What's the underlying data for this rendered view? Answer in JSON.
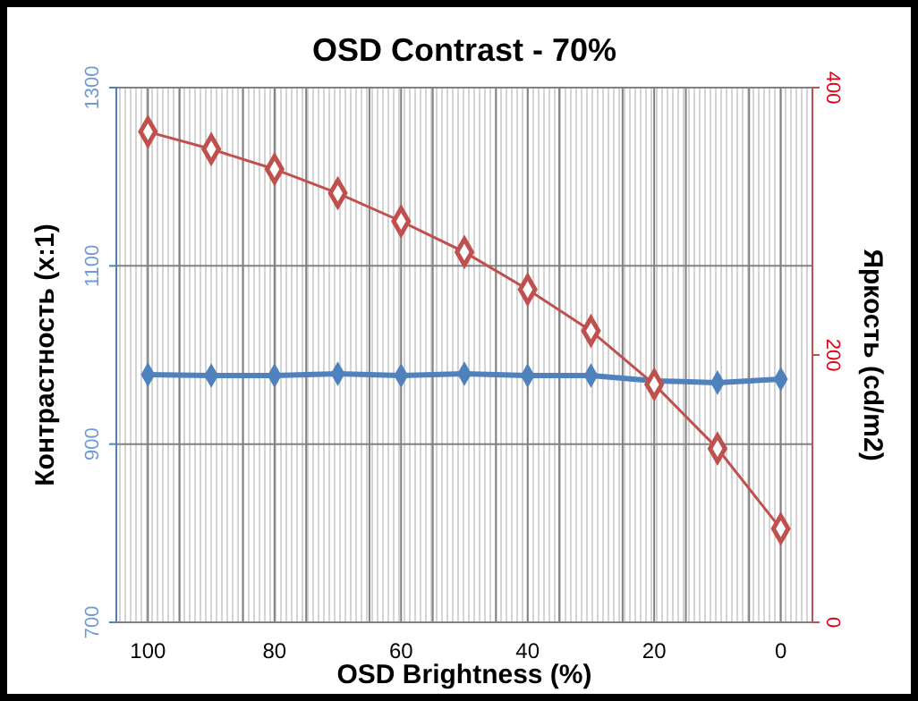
{
  "chart_data": {
    "type": "line",
    "title": "OSD Contrast - 70%",
    "xlabel": "OSD Brightness (%)",
    "ylabel": "Контрастность (x:1)",
    "y2label": "Яркость (cd/m2)",
    "x": [
      100,
      90,
      80,
      70,
      60,
      50,
      40,
      30,
      20,
      10,
      0
    ],
    "xlim": [
      105,
      -5
    ],
    "xticks": [
      100,
      {
        "value": 95,
        "label": null
      },
      {
        "value": 85,
        "label": null
      },
      80,
      {
        "value": 75,
        "label": null
      },
      {
        "value": 65,
        "label": null
      },
      60,
      {
        "value": 55,
        "label": null
      },
      {
        "value": 45,
        "label": null
      },
      40,
      {
        "value": 35,
        "label": null
      },
      {
        "value": 25,
        "label": null
      },
      20,
      {
        "value": 15,
        "label": null
      },
      {
        "value": 5,
        "label": null
      },
      0
    ],
    "ylim": [
      700,
      1300
    ],
    "yticks": [
      700,
      900,
      1100,
      1300
    ],
    "y2lim": [
      0,
      400
    ],
    "y2ticks": [
      0,
      200,
      400
    ],
    "grid": true,
    "marker": "diamond",
    "line_style": "solid",
    "series": [
      {
        "color": "#4f81bd",
        "values": [
          978,
          977,
          977,
          979,
          977,
          979,
          977,
          977,
          971,
          969,
          973
        ]
      },
      {
        "color": "#c0504d",
        "axis": "y2",
        "values": [
          367,
          354,
          339,
          321,
          300,
          277,
          249,
          218,
          178,
          130,
          70
        ]
      }
    ]
  }
}
